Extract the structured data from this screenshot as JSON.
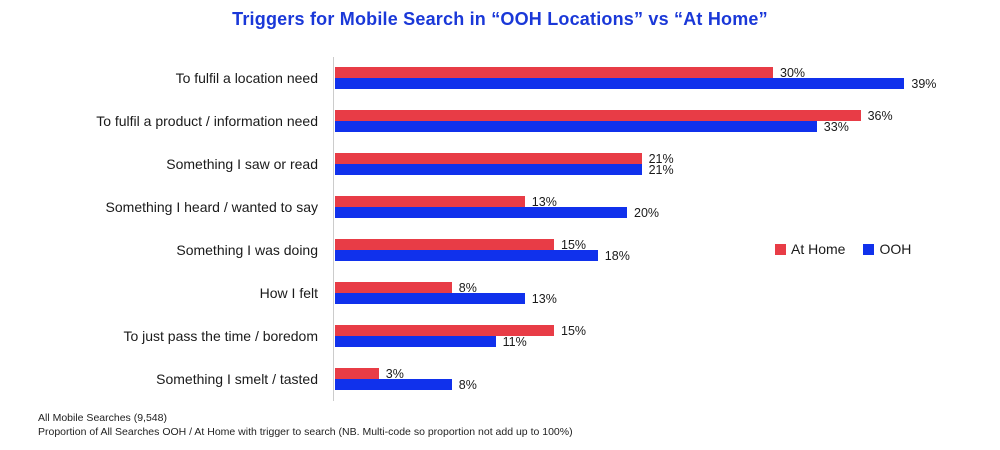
{
  "title": "Triggers for Mobile Search in “OOH Locations” vs “At Home”",
  "legend": [
    {
      "label": "At Home",
      "color": "#e83c46"
    },
    {
      "label": "OOH",
      "color": "#1031ec"
    }
  ],
  "footnotes": [
    "All Mobile Searches (9,548)",
    "Proportion of All Searches OOH / At Home with trigger to search (NB. Multi-code so proportion not add up to 100%)"
  ],
  "chart_data": {
    "type": "bar",
    "orientation": "horizontal",
    "title": "Triggers for Mobile Search in “OOH Locations” vs “At Home”",
    "categories": [
      "To fulfil a location need",
      "To fulfil a product / information need",
      "Something I saw or read",
      "Something I heard / wanted to say",
      "Something I was doing",
      "How I felt",
      "To just pass the time / boredom",
      "Something I smelt / tasted"
    ],
    "series": [
      {
        "name": "At Home",
        "color": "#e83c46",
        "values": [
          30,
          36,
          21,
          13,
          15,
          8,
          15,
          3
        ]
      },
      {
        "name": "OOH",
        "color": "#1031ec",
        "values": [
          39,
          33,
          21,
          20,
          18,
          13,
          11,
          8
        ]
      }
    ],
    "value_suffix": "%",
    "xlim": [
      0,
      40
    ],
    "grid": false,
    "legend_position": "right-middle",
    "title_color": "#1a38d8"
  }
}
